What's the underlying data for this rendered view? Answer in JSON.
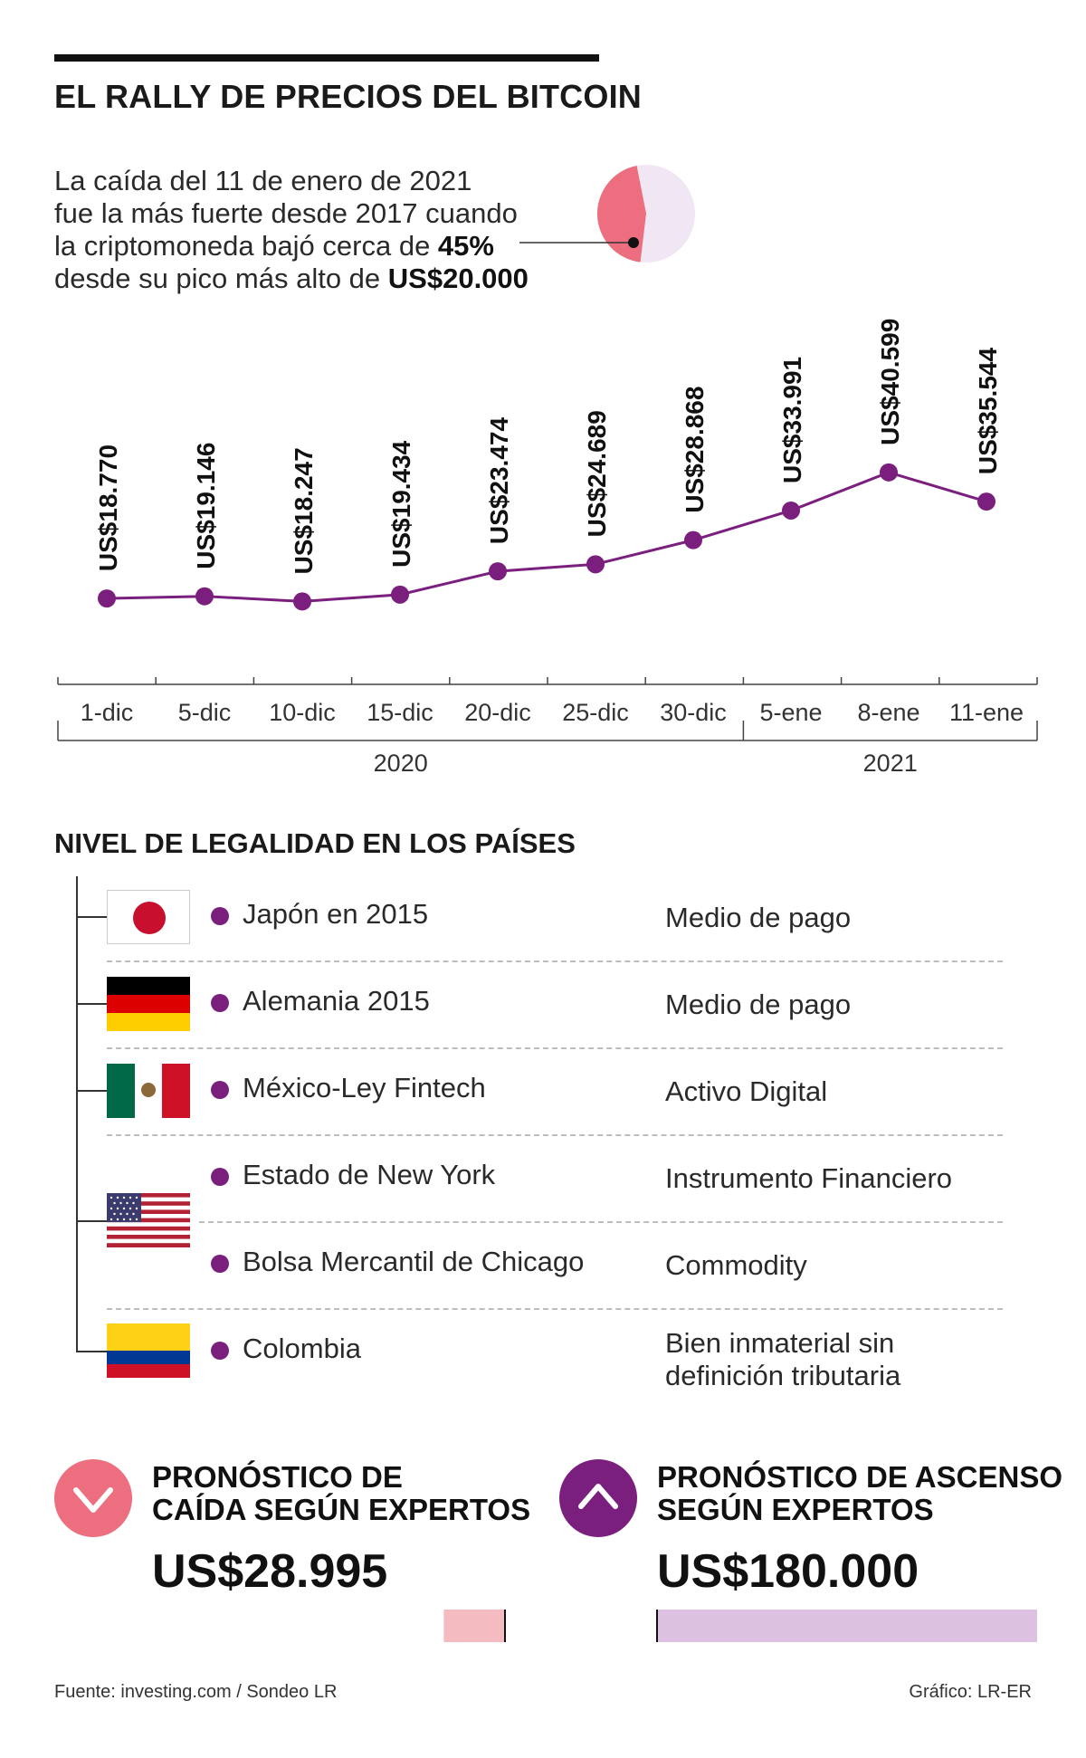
{
  "title": "EL RALLY DE PRECIOS DEL BITCOIN",
  "intro": {
    "line1": "La caída del 11 de enero de 2021",
    "line2": "fue la más fuerte desde 2017 cuando",
    "line3_pre": "la criptomoneda bajó cerca de ",
    "line3_bold": "45%",
    "line4_pre": "desde su pico más alto de ",
    "line4_bold": "US$20.000"
  },
  "colors": {
    "line": "#7b1f7e",
    "pie_drop": "#ec6e7f",
    "pie_rest": "#f1e6f3",
    "down_circle": "#ec6e7f",
    "up_circle": "#7b1f7e",
    "down_bar": "#f4bcc0",
    "up_bar": "#dcc2e0"
  },
  "chart_data": {
    "type": "line",
    "title": "EL RALLY DE PRECIOS DEL BITCOIN",
    "categories": [
      "1-dic",
      "5-dic",
      "10-dic",
      "15-dic",
      "20-dic",
      "25-dic",
      "30-dic",
      "5-ene",
      "8-ene",
      "11-ene"
    ],
    "values": [
      18770,
      19146,
      18247,
      19434,
      23474,
      24689,
      28868,
      33991,
      40599,
      35544
    ],
    "data_labels": [
      "US$18.770",
      "US$19.146",
      "US$18.247",
      "US$19.434",
      "US$23.474",
      "US$24.689",
      "US$28.868",
      "US$33.991",
      "US$40.599",
      "US$35.544"
    ],
    "year_groups": [
      {
        "label": "2020",
        "count": 7
      },
      {
        "label": "2021",
        "count": 3
      }
    ],
    "xlabel": "",
    "ylabel": "",
    "ylim": [
      0,
      45000
    ],
    "pie_drop_percent": 45
  },
  "legal": {
    "title": "NIVEL DE LEGALIDAD EN LOS PAÍSES",
    "rows": [
      {
        "country": "Japón en 2015",
        "status": "Medio de pago"
      },
      {
        "country": "Alemania 2015",
        "status": "Medio de pago"
      },
      {
        "country": "México-Ley Fintech",
        "status": "Activo Digital"
      },
      {
        "country": "Estado de New York",
        "status": "Instrumento Financiero"
      },
      {
        "country": "Bolsa Mercantil de Chicago",
        "status": "Commodity"
      },
      {
        "country": "Colombia",
        "status_line1": "Bien inmaterial sin",
        "status_line2": "definición tributaria"
      }
    ]
  },
  "forecast": {
    "down": {
      "title_line1": "PRONÓSTICO DE",
      "title_line2": "CAÍDA SEGÚN EXPERTOS",
      "value": "US$28.995",
      "amount": 28995
    },
    "up": {
      "title_line1": "PRONÓSTICO DE ASCENSO",
      "title_line2": "SEGÚN EXPERTOS",
      "value": "US$180.000",
      "amount": 180000
    }
  },
  "source": "Fuente: investing.com / Sondeo LR",
  "credit": "Gráfico: LR-ER"
}
